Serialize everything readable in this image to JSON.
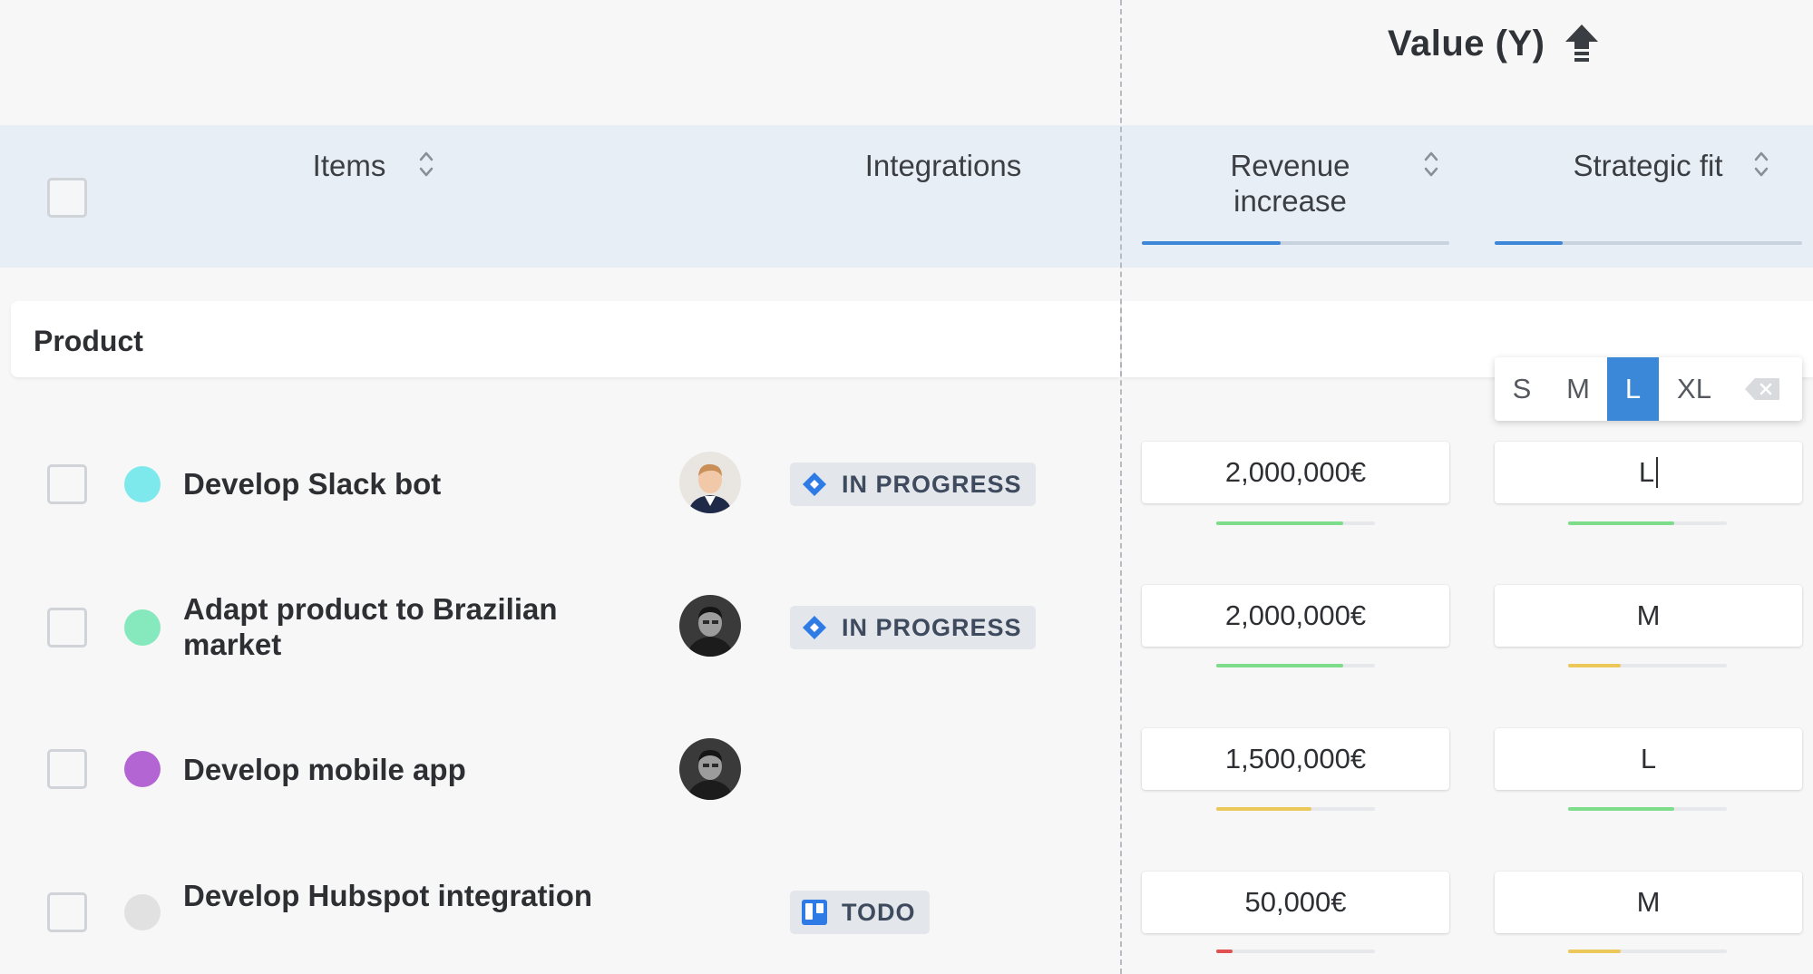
{
  "section": {
    "title": "Value (Y)",
    "sort_icon": "up-arrow-icon"
  },
  "columns": {
    "items": "Items",
    "integrations": "Integrations",
    "revenue": "Revenue increase",
    "strategic_fit": "Strategic fit",
    "revenue_progress": 0.45,
    "strategic_fit_progress": 0.22
  },
  "group": {
    "label": "Product"
  },
  "size_picker": {
    "options": [
      "S",
      "M",
      "L",
      "XL"
    ],
    "selected": "L",
    "clear_icon": "backspace-icon"
  },
  "rows": [
    {
      "title": "Develop Slack bot",
      "dot_color": "#7ee9ec",
      "avatar": "man-light-suit",
      "badge": {
        "label": "IN PROGRESS",
        "icon": "jira-icon"
      },
      "revenue": "2,000,000€",
      "revenue_score": 0.8,
      "revenue_color": "#7ddd8b",
      "fit": "L",
      "fit_score": 0.67,
      "fit_color": "#7ddd8b"
    },
    {
      "title": "Adapt product to Brazilian market",
      "dot_color": "#86e8bd",
      "avatar": "man-dark-bw",
      "badge": {
        "label": "IN PROGRESS",
        "icon": "jira-icon"
      },
      "revenue": "2,000,000€",
      "revenue_score": 0.8,
      "revenue_color": "#7ddd8b",
      "fit": "M",
      "fit_score": 0.33,
      "fit_color": "#ecc85a"
    },
    {
      "title": "Develop mobile app",
      "dot_color": "#b265d3",
      "avatar": "man-dark-bw",
      "badge": null,
      "revenue": "1,500,000€",
      "revenue_score": 0.6,
      "revenue_color": "#ecc85a",
      "fit": "L",
      "fit_score": 0.67,
      "fit_color": "#7ddd8b"
    },
    {
      "title": "Develop Hubspot integration",
      "dot_color": "#e1e1e1",
      "avatar": null,
      "badge": {
        "label": "TODO",
        "icon": "trello-icon"
      },
      "revenue": "50,000€",
      "revenue_score": 0.1,
      "revenue_color": "#e05252",
      "fit": "M",
      "fit_score": 0.33,
      "fit_color": "#ecc85a"
    }
  ],
  "colors": {
    "accent": "#3b88d9",
    "header_bg": "#e8eef5",
    "green": "#7ddd8b",
    "yellow": "#ecc85a",
    "red": "#e05252"
  }
}
